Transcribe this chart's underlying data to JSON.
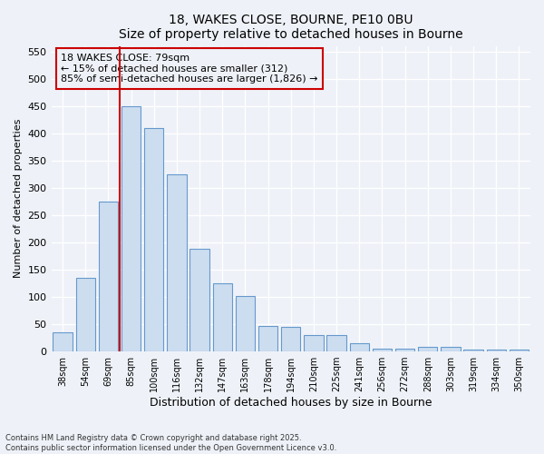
{
  "title1": "18, WAKES CLOSE, BOURNE, PE10 0BU",
  "title2": "Size of property relative to detached houses in Bourne",
  "xlabel": "Distribution of detached houses by size in Bourne",
  "ylabel": "Number of detached properties",
  "categories": [
    "38sqm",
    "54sqm",
    "69sqm",
    "85sqm",
    "100sqm",
    "116sqm",
    "132sqm",
    "147sqm",
    "163sqm",
    "178sqm",
    "194sqm",
    "210sqm",
    "225sqm",
    "241sqm",
    "256sqm",
    "272sqm",
    "288sqm",
    "303sqm",
    "319sqm",
    "334sqm",
    "350sqm"
  ],
  "values": [
    35,
    135,
    275,
    450,
    410,
    325,
    188,
    125,
    102,
    46,
    45,
    30,
    30,
    15,
    5,
    5,
    9,
    9,
    4,
    4,
    4
  ],
  "bar_color": "#ccddf0",
  "bar_edge_color": "#6699cc",
  "vline_x": 2.5,
  "vline_color": "#cc0000",
  "annotation_title": "18 WAKES CLOSE: 79sqm",
  "annotation_line1": "← 15% of detached houses are smaller (312)",
  "annotation_line2": "85% of semi-detached houses are larger (1,826) →",
  "annotation_box_color": "#cc0000",
  "ylim": [
    0,
    560
  ],
  "yticks": [
    0,
    50,
    100,
    150,
    200,
    250,
    300,
    350,
    400,
    450,
    500,
    550
  ],
  "footer1": "Contains HM Land Registry data © Crown copyright and database right 2025.",
  "footer2": "Contains public sector information licensed under the Open Government Licence v3.0.",
  "bg_color": "#eef2f8"
}
